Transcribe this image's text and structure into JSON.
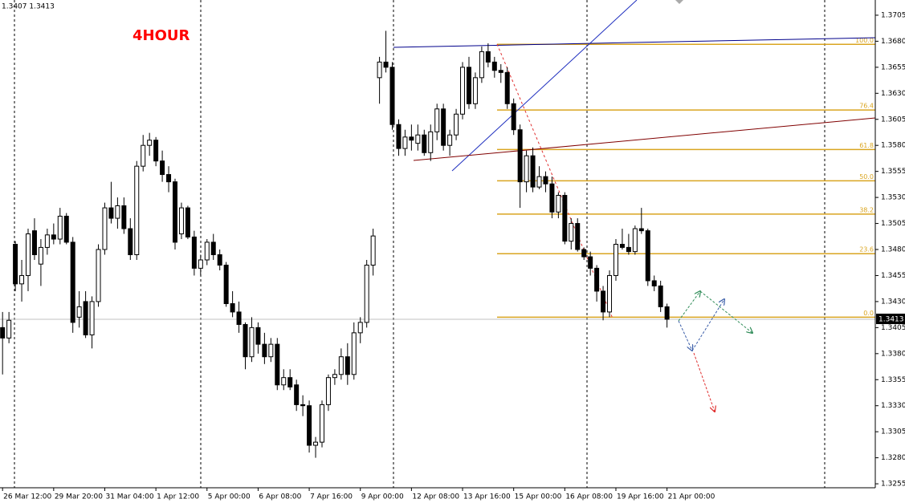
{
  "chart_data": {
    "type": "candlestick",
    "title": "4HOUR",
    "quote": "1.3407 1.3413",
    "last_price": 1.3413,
    "up_color": "#ffffff",
    "down_color": "#000000",
    "wick_color": "#000000",
    "open": [
      1.3405,
      1.3395,
      1.3485,
      1.3447,
      1.3455,
      1.3498,
      1.3466,
      1.3482,
      1.3494,
      1.349,
      1.3512,
      1.3487,
      1.3415,
      1.343,
      1.3398,
      1.343,
      1.348,
      1.352,
      1.351,
      1.3522,
      1.35,
      1.3475,
      1.356,
      1.358,
      1.3585,
      1.3565,
      1.3552,
      1.3545,
      1.3495,
      1.352,
      1.3492,
      1.3462,
      1.347,
      1.3487,
      1.3475,
      1.3465,
      1.3428,
      1.342,
      1.3408,
      1.3377,
      1.3405,
      1.3389,
      1.3377,
      1.3389,
      1.335,
      1.3357,
      1.335,
      1.3331,
      1.333,
      1.3292,
      1.3295,
      1.3331,
      1.3357,
      1.336,
      1.3377,
      1.336,
      1.34,
      1.341,
      1.3465,
      1.3645,
      1.366,
      1.3655,
      1.36,
      1.3577,
      1.3588,
      1.3582,
      1.359,
      1.3573,
      1.3593,
      1.3615,
      1.358,
      1.359,
      1.361,
      1.3655,
      1.362,
      1.3645,
      1.367,
      1.366,
      1.3652,
      1.365,
      1.362,
      1.3595,
      1.3545,
      1.357,
      1.354,
      1.355,
      1.3543,
      1.3516,
      1.3532,
      1.3488,
      1.3505,
      1.348,
      1.3473,
      1.3462,
      1.344,
      1.342,
      1.3455,
      1.3485,
      1.3482,
      1.3478,
      1.35,
      1.3498,
      1.345,
      1.3445,
      1.3425
    ],
    "high": [
      1.342,
      1.342,
      1.3488,
      1.347,
      1.35,
      1.351,
      1.349,
      1.35,
      1.3505,
      1.352,
      1.3515,
      1.3492,
      1.344,
      1.344,
      1.3435,
      1.3485,
      1.3525,
      1.3545,
      1.353,
      1.353,
      1.351,
      1.3565,
      1.359,
      1.3592,
      1.3588,
      1.3575,
      1.356,
      1.3548,
      1.3525,
      1.3522,
      1.3498,
      1.3475,
      1.349,
      1.3495,
      1.348,
      1.3468,
      1.344,
      1.343,
      1.341,
      1.3415,
      1.341,
      1.34,
      1.3395,
      1.3395,
      1.3365,
      1.3365,
      1.3355,
      1.334,
      1.3335,
      1.33,
      1.3335,
      1.336,
      1.3365,
      1.3385,
      1.339,
      1.341,
      1.3415,
      1.347,
      1.35,
      1.3665,
      1.369,
      1.366,
      1.3605,
      1.3595,
      1.36,
      1.36,
      1.3595,
      1.36,
      1.362,
      1.362,
      1.3595,
      1.3615,
      1.366,
      1.3665,
      1.365,
      1.3675,
      1.3678,
      1.3665,
      1.3658,
      1.3655,
      1.3625,
      1.36,
      1.3575,
      1.3578,
      1.356,
      1.3555,
      1.355,
      1.3535,
      1.3535,
      1.351,
      1.351,
      1.3482,
      1.3478,
      1.3465,
      1.3445,
      1.346,
      1.349,
      1.35,
      1.3495,
      1.3503,
      1.352,
      1.35,
      1.3455,
      1.345,
      1.3428
    ],
    "low": [
      1.336,
      1.339,
      1.344,
      1.343,
      1.344,
      1.347,
      1.3445,
      1.3475,
      1.3485,
      1.3485,
      1.3485,
      1.34,
      1.3405,
      1.3395,
      1.3385,
      1.3425,
      1.3475,
      1.3505,
      1.35,
      1.3495,
      1.347,
      1.347,
      1.3555,
      1.357,
      1.356,
      1.3545,
      1.3535,
      1.348,
      1.349,
      1.349,
      1.3455,
      1.3455,
      1.3465,
      1.347,
      1.346,
      1.3425,
      1.3415,
      1.34,
      1.3365,
      1.3372,
      1.338,
      1.337,
      1.3372,
      1.3345,
      1.3345,
      1.3345,
      1.3325,
      1.332,
      1.3285,
      1.328,
      1.329,
      1.3325,
      1.335,
      1.3355,
      1.335,
      1.3355,
      1.339,
      1.3405,
      1.3455,
      1.362,
      1.365,
      1.3595,
      1.357,
      1.357,
      1.3575,
      1.3575,
      1.357,
      1.3565,
      1.3585,
      1.3575,
      1.357,
      1.3585,
      1.3605,
      1.3615,
      1.3615,
      1.364,
      1.3655,
      1.3645,
      1.364,
      1.3615,
      1.359,
      1.352,
      1.3535,
      1.3535,
      1.3538,
      1.3535,
      1.351,
      1.351,
      1.3485,
      1.348,
      1.3478,
      1.347,
      1.3455,
      1.343,
      1.3412,
      1.3415,
      1.345,
      1.348,
      1.3475,
      1.3475,
      1.3495,
      1.3445,
      1.344,
      1.342,
      1.3405
    ],
    "close": [
      1.3395,
      1.3412,
      1.3447,
      1.3455,
      1.3495,
      1.3475,
      1.3482,
      1.3494,
      1.349,
      1.3512,
      1.3487,
      1.341,
      1.3425,
      1.3398,
      1.343,
      1.348,
      1.352,
      1.351,
      1.3522,
      1.35,
      1.3475,
      1.356,
      1.358,
      1.3585,
      1.3565,
      1.3552,
      1.3545,
      1.3487,
      1.352,
      1.3492,
      1.3462,
      1.347,
      1.3487,
      1.3475,
      1.3465,
      1.3428,
      1.342,
      1.3408,
      1.3377,
      1.3405,
      1.3389,
      1.3377,
      1.3389,
      1.335,
      1.3357,
      1.3348,
      1.3331,
      1.333,
      1.3292,
      1.3295,
      1.3331,
      1.3357,
      1.336,
      1.3377,
      1.336,
      1.34,
      1.341,
      1.3465,
      1.3493,
      1.366,
      1.3655,
      1.36,
      1.3577,
      1.3588,
      1.3585,
      1.359,
      1.3573,
      1.3593,
      1.3615,
      1.358,
      1.359,
      1.361,
      1.3655,
      1.362,
      1.3645,
      1.367,
      1.366,
      1.3652,
      1.365,
      1.362,
      1.3595,
      1.3545,
      1.357,
      1.354,
      1.355,
      1.3543,
      1.3516,
      1.3532,
      1.3488,
      1.3505,
      1.348,
      1.3473,
      1.3462,
      1.344,
      1.342,
      1.3455,
      1.3485,
      1.3482,
      1.3478,
      1.35,
      1.3498,
      1.345,
      1.3445,
      1.3425,
      1.3413
    ],
    "xlim": [
      -0.4,
      136.6
    ],
    "xticks": [
      {
        "value": 0,
        "label": "26 Mar 12:00"
      },
      {
        "value": 8,
        "label": "29 Mar 20:00"
      },
      {
        "value": 16,
        "label": "31 Mar 04:00"
      },
      {
        "value": 24,
        "label": "1 Apr 12:00"
      },
      {
        "value": 32,
        "label": "5 Apr 00:00"
      },
      {
        "value": 40,
        "label": "6 Apr 08:00"
      },
      {
        "value": 48,
        "label": "7 Apr 16:00"
      },
      {
        "value": 56,
        "label": "9 Apr 00:00"
      },
      {
        "value": 64,
        "label": "12 Apr 08:00"
      },
      {
        "value": 72,
        "label": "13 Apr 16:00"
      },
      {
        "value": 80,
        "label": "15 Apr 00:00"
      },
      {
        "value": 88,
        "label": "16 Apr 08:00"
      },
      {
        "value": 96,
        "label": "19 Apr 16:00"
      },
      {
        "value": 104,
        "label": "21 Apr 00:00"
      }
    ],
    "ylim": [
      1.32512,
      1.37196
    ],
    "yticks": [
      1.3705,
      {
        "value": 1.368,
        "label": "1.3680"
      },
      1.3655,
      {
        "value": 1.363,
        "label": "1.3630"
      },
      1.3605,
      {
        "value": 1.358,
        "label": "1.3580"
      },
      1.3555,
      {
        "value": 1.353,
        "label": "1.3530"
      },
      1.3505,
      {
        "value": 1.348,
        "label": "1.3480"
      },
      1.3455,
      {
        "value": 1.343,
        "label": "1.3430"
      },
      1.3405,
      {
        "value": 1.338,
        "label": "1.3380"
      },
      1.3355,
      {
        "value": 1.333,
        "label": "1.3330"
      },
      1.3305,
      {
        "value": 1.328,
        "label": "1.3280"
      },
      1.3255
    ],
    "fibonacci": {
      "color": "#daa520",
      "levels": [
        {
          "value": 100,
          "label": "100.0",
          "price": 1.3677
        },
        {
          "value": 76.4,
          "label": "76.4",
          "price": 1.3614
        },
        {
          "value": 61.8,
          "label": "61.8",
          "price": 1.3576
        },
        {
          "value": 50,
          "label": "50.0",
          "price": 1.3546
        },
        {
          "value": 38.2,
          "label": "38.2",
          "price": 1.3514
        },
        {
          "value": 23.6,
          "label": "23.6",
          "price": 1.3476
        },
        {
          "value": 0,
          "label": "0.0",
          "price": 1.3415
        }
      ]
    }
  }
}
